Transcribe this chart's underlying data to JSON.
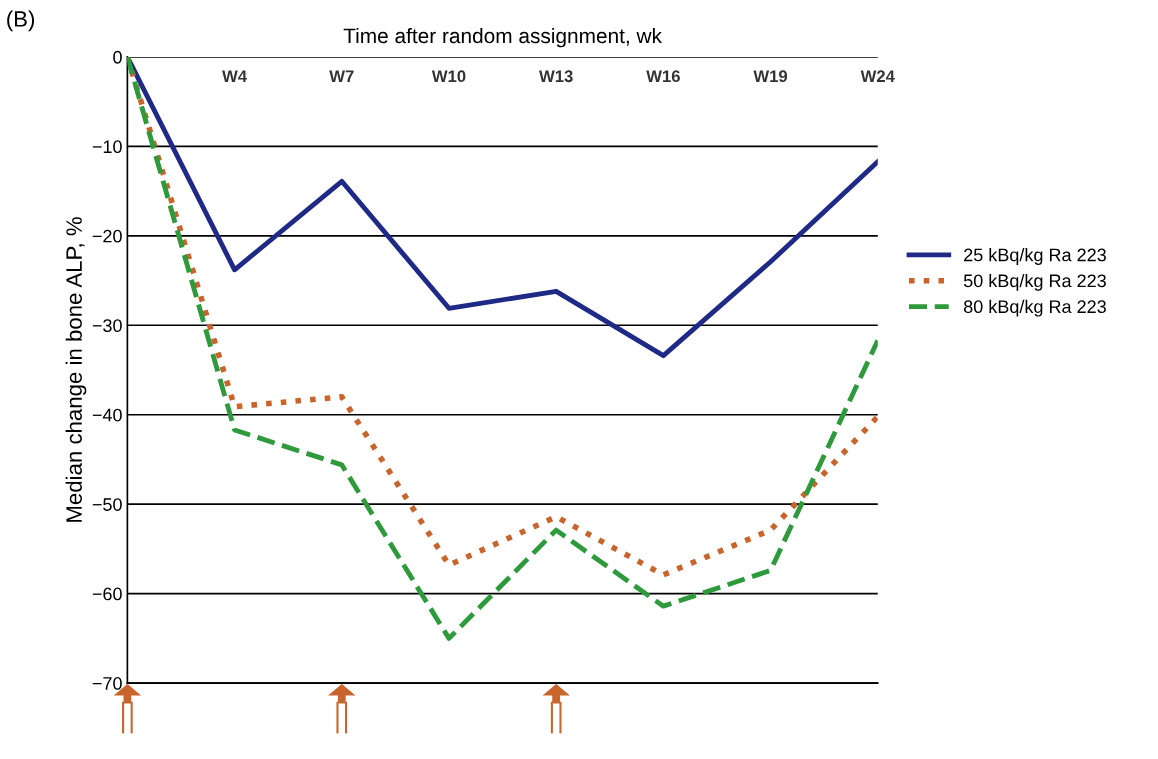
{
  "chart_data": {
    "type": "line",
    "xlabel": "Time after random assignment, wk",
    "ylabel": "Median change in bone ALP, %",
    "categories": [
      null,
      "W4",
      "W7",
      "W10",
      "W13",
      "W16",
      "W19",
      "W24"
    ],
    "series": [
      {
        "name": "25 kBq/kg Ra 223",
        "color": "#1f2a86",
        "line_style": "solid",
        "values": [
          0,
          -23.8,
          -13.9,
          -28.1,
          -26.2,
          -33.4,
          -22.9,
          -11.7
        ]
      },
      {
        "name": "50 kBq/kg Ra 223",
        "color": "#c8652c",
        "line_style": "dotted",
        "values": [
          0,
          -39.1,
          -38.0,
          -56.8,
          -51.4,
          -57.9,
          -52.9,
          -40.2
        ]
      },
      {
        "name": "80 kBq/kg Ra 223",
        "color": "#2f9a3c",
        "line_style": "dashed",
        "values": [
          0,
          -41.7,
          -45.6,
          -65.0,
          -52.9,
          -61.4,
          -57.4,
          -31.7
        ]
      }
    ],
    "ylim": [
      -70,
      0
    ],
    "yticks": [
      {
        "value": 0,
        "label": "0"
      },
      {
        "value": -10,
        "label": "−10"
      },
      {
        "value": -20,
        "label": "−20"
      },
      {
        "value": -30,
        "label": "−30"
      },
      {
        "value": -40,
        "label": "−40"
      },
      {
        "value": -50,
        "label": "−50"
      },
      {
        "value": -60,
        "label": "−60"
      },
      {
        "value": -70,
        "label": "−70"
      }
    ],
    "grid": "y",
    "legend": "right",
    "marker": "none",
    "annotations": [
      "(B)"
    ]
  }
}
